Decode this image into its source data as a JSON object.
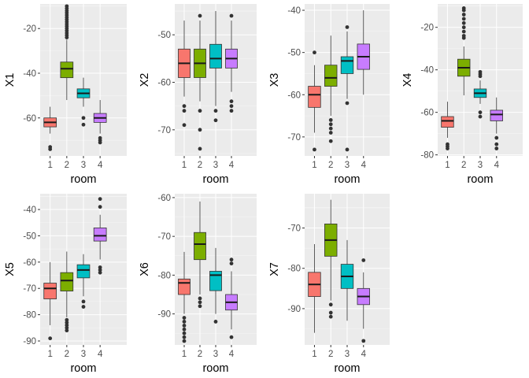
{
  "colors": {
    "panel_bg": "#EBEBEB",
    "grid_major": "#FFFFFF",
    "tick_text": "#4D4D4D",
    "whisker": "#333333",
    "fills": [
      "#F8766D",
      "#7CAE00",
      "#00BFC4",
      "#C77CFF"
    ]
  },
  "chart_data": [
    {
      "type": "boxplot",
      "xlabel": "room",
      "ylabel": "X1",
      "categories": [
        "1",
        "2",
        "3",
        "4"
      ],
      "ylim": [
        -77,
        -9
      ],
      "yticks": [
        -60,
        -40,
        -20
      ],
      "boxes": [
        {
          "q1": -64,
          "median": -62,
          "q3": -60,
          "whislo": -67,
          "whishi": -55,
          "outliers": [
            -73,
            -74
          ]
        },
        {
          "q1": -42,
          "median": -38,
          "q3": -35,
          "whislo": -52,
          "whishi": -25,
          "outliers": [
            -10,
            -11,
            -12,
            -13,
            -14,
            -15,
            -16,
            -17,
            -18,
            -19,
            -20,
            -21,
            -22,
            -23,
            -24
          ]
        },
        {
          "q1": -51,
          "median": -49,
          "q3": -47,
          "whislo": -55,
          "whishi": -42,
          "outliers": [
            -60,
            -63
          ]
        },
        {
          "q1": -62,
          "median": -60,
          "q3": -58,
          "whislo": -67,
          "whishi": -52,
          "outliers": [
            -69,
            -70,
            -71
          ]
        }
      ]
    },
    {
      "type": "boxplot",
      "xlabel": "room",
      "ylabel": "X2",
      "categories": [
        "1",
        "2",
        "3",
        "4"
      ],
      "ylim": [
        -75.5,
        -43.5
      ],
      "yticks": [
        -70,
        -60,
        -50
      ],
      "boxes": [
        {
          "q1": -59,
          "median": -56,
          "q3": -53,
          "whislo": -63,
          "whishi": -47,
          "outliers": [
            -65,
            -66,
            -69
          ]
        },
        {
          "q1": -59,
          "median": -56,
          "q3": -53,
          "whislo": -64,
          "whishi": -47,
          "outliers": [
            -46,
            -66,
            -70,
            -74
          ]
        },
        {
          "q1": -57,
          "median": -55,
          "q3": -52,
          "whislo": -65,
          "whishi": -45,
          "outliers": [
            -66,
            -68
          ]
        },
        {
          "q1": -57,
          "median": -55,
          "q3": -53,
          "whislo": -62,
          "whishi": -47,
          "outliers": [
            -46,
            -64,
            -65,
            -66
          ]
        }
      ]
    },
    {
      "type": "boxplot",
      "xlabel": "room",
      "ylabel": "X3",
      "categories": [
        "1",
        "2",
        "3",
        "4"
      ],
      "ylim": [
        -74.5,
        -38.5
      ],
      "yticks": [
        -70,
        -60,
        -50,
        -40
      ],
      "boxes": [
        {
          "q1": -63,
          "median": -60,
          "q3": -58,
          "whislo": -69,
          "whishi": -53,
          "outliers": [
            -50,
            -73
          ]
        },
        {
          "q1": -58,
          "median": -56,
          "q3": -53,
          "whislo": -65,
          "whishi": -46,
          "outliers": [
            -66,
            -67,
            -68,
            -69,
            -71
          ]
        },
        {
          "q1": -55,
          "median": -52,
          "q3": -51,
          "whislo": -61,
          "whishi": -45,
          "outliers": [
            -44,
            -62,
            -73
          ]
        },
        {
          "q1": -54,
          "median": -51,
          "q3": -48,
          "whislo": -60,
          "whishi": -40,
          "outliers": []
        }
      ]
    },
    {
      "type": "boxplot",
      "xlabel": "room",
      "ylabel": "X4",
      "categories": [
        "1",
        "2",
        "3",
        "4"
      ],
      "ylim": [
        -80.5,
        -9
      ],
      "yticks": [
        -80,
        -60,
        -40,
        -20
      ],
      "boxes": [
        {
          "q1": -67,
          "median": -64,
          "q3": -62,
          "whislo": -72,
          "whishi": -55,
          "outliers": [
            -75,
            -76,
            -77
          ]
        },
        {
          "q1": -43,
          "median": -39,
          "q3": -35,
          "whislo": -52,
          "whishi": -29,
          "outliers": [
            -11,
            -12,
            -14,
            -16,
            -18,
            -20,
            -22,
            -24,
            -25
          ]
        },
        {
          "q1": -53,
          "median": -51,
          "q3": -49,
          "whislo": -56,
          "whishi": -45,
          "outliers": [
            -41,
            -42,
            -43,
            -60,
            -62
          ]
        },
        {
          "q1": -64,
          "median": -61,
          "q3": -59,
          "whislo": -70,
          "whishi": -53,
          "outliers": [
            -72,
            -75,
            -77
          ]
        }
      ]
    },
    {
      "type": "boxplot",
      "xlabel": "room",
      "ylabel": "X5",
      "categories": [
        "1",
        "2",
        "3",
        "4"
      ],
      "ylim": [
        -91.5,
        -34
      ],
      "yticks": [
        -90,
        -80,
        -70,
        -60,
        -50,
        -40
      ],
      "boxes": [
        {
          "q1": -74,
          "median": -70,
          "q3": -68,
          "whislo": -84,
          "whishi": -60,
          "outliers": [
            -89
          ]
        },
        {
          "q1": -71,
          "median": -67,
          "q3": -64,
          "whislo": -81,
          "whishi": -56,
          "outliers": [
            -82,
            -83,
            -84,
            -85,
            -86
          ]
        },
        {
          "q1": -66,
          "median": -63,
          "q3": -61,
          "whislo": -73,
          "whishi": -57,
          "outliers": [
            -75,
            -77
          ]
        },
        {
          "q1": -52,
          "median": -50,
          "q3": -47,
          "whislo": -59,
          "whishi": -42,
          "outliers": [
            -36,
            -39,
            -62,
            -63,
            -64
          ]
        }
      ]
    },
    {
      "type": "boxplot",
      "xlabel": "room",
      "ylabel": "X6",
      "categories": [
        "1",
        "2",
        "3",
        "4"
      ],
      "ylim": [
        -98,
        -59
      ],
      "yticks": [
        -90,
        -80,
        -70,
        -60
      ],
      "boxes": [
        {
          "q1": -85,
          "median": -82,
          "q3": -81,
          "whislo": -90,
          "whishi": -74,
          "outliers": [
            -91,
            -92,
            -93,
            -94,
            -95,
            -96,
            -97
          ]
        },
        {
          "q1": -76,
          "median": -72,
          "q3": -69,
          "whislo": -85,
          "whishi": -61,
          "outliers": [
            -86,
            -87,
            -88
          ]
        },
        {
          "q1": -84,
          "median": -80,
          "q3": -79,
          "whislo": -90,
          "whishi": -73,
          "outliers": [
            -92
          ]
        },
        {
          "q1": -89,
          "median": -87,
          "q3": -85,
          "whislo": -94,
          "whishi": -79,
          "outliers": [
            -76,
            -77,
            -96
          ]
        }
      ]
    },
    {
      "type": "boxplot",
      "xlabel": "room",
      "ylabel": "X7",
      "categories": [
        "1",
        "2",
        "3",
        "4"
      ],
      "ylim": [
        -99,
        -61.5
      ],
      "yticks": [
        -90,
        -80,
        -70
      ],
      "boxes": [
        {
          "q1": -87,
          "median": -84,
          "q3": -81,
          "whislo": -96,
          "whishi": -74,
          "outliers": []
        },
        {
          "q1": -77,
          "median": -73,
          "q3": -69,
          "whislo": -88,
          "whishi": -63,
          "outliers": [
            -89,
            -91,
            -92
          ]
        },
        {
          "q1": -85,
          "median": -82,
          "q3": -79,
          "whislo": -93,
          "whishi": -73,
          "outliers": []
        },
        {
          "q1": -89,
          "median": -87,
          "q3": -85,
          "whislo": -95,
          "whishi": -81,
          "outliers": [
            -78,
            -98
          ]
        }
      ]
    }
  ]
}
